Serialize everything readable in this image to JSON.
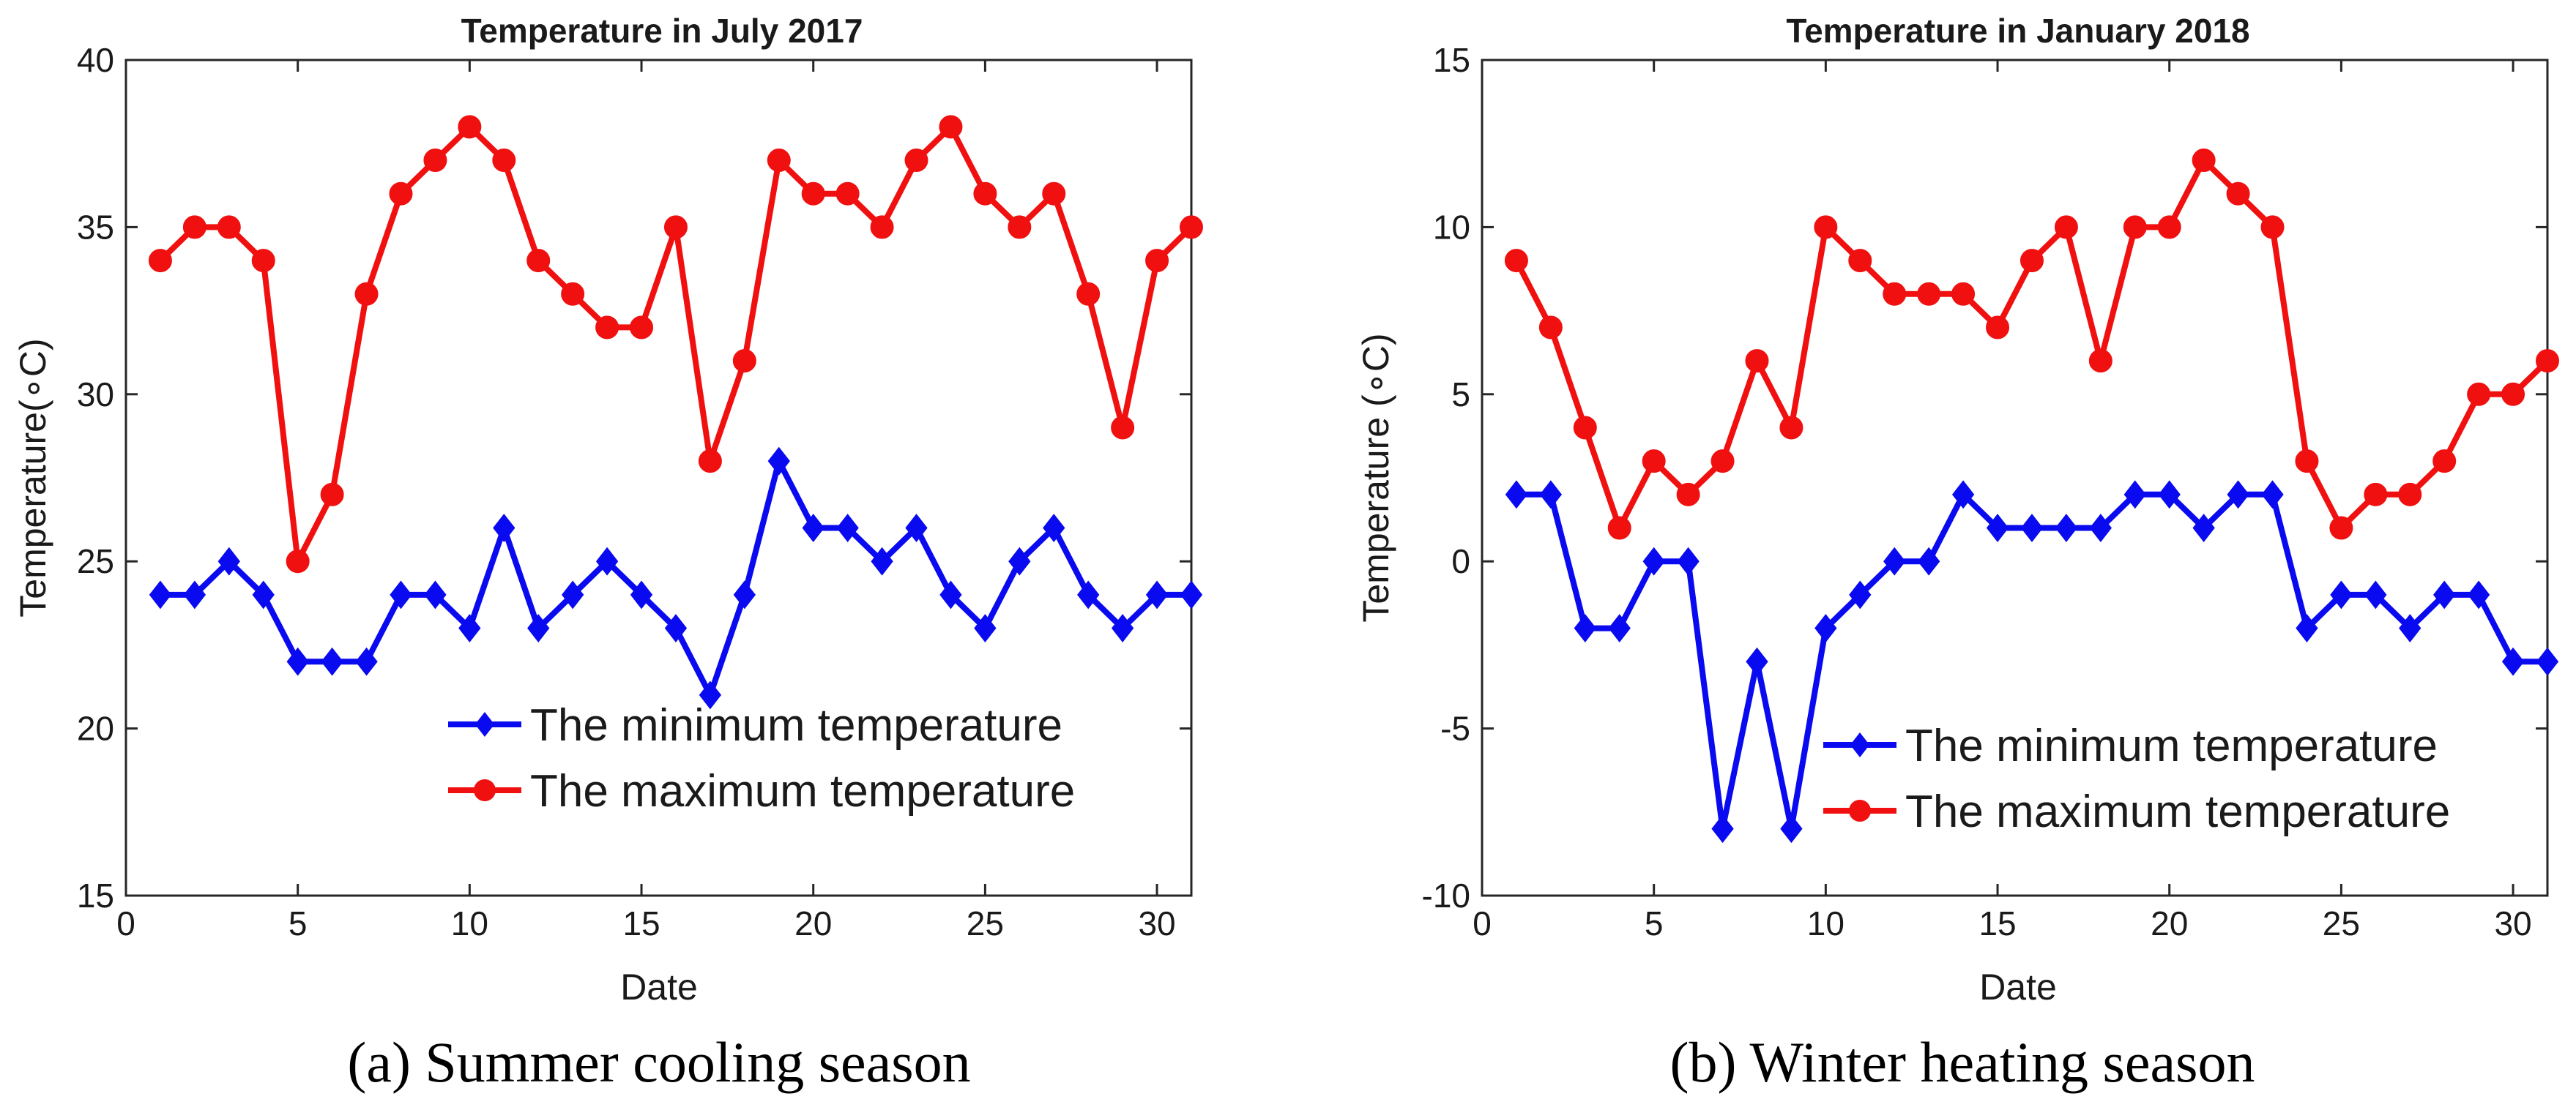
{
  "colors": {
    "min_series": "#0a0af0",
    "max_series": "#f01010",
    "axis": "#262626",
    "background": "#ffffff"
  },
  "chart_data": [
    {
      "type": "line",
      "id": "a",
      "title": "Temperature in July 2017",
      "xlabel": "Date",
      "ylabel": "Temperature(∘C)",
      "xlim": [
        0,
        31
      ],
      "ylim": [
        15,
        40
      ],
      "xticks": [
        0,
        5,
        10,
        15,
        20,
        25,
        30
      ],
      "yticks": [
        15,
        20,
        25,
        30,
        35,
        40
      ],
      "grid": false,
      "legend_position": "bottom-right",
      "caption_label": "(a)",
      "caption_text": "Summer cooling season",
      "x": [
        1,
        2,
        3,
        4,
        5,
        6,
        7,
        8,
        9,
        10,
        11,
        12,
        13,
        14,
        15,
        16,
        17,
        18,
        19,
        20,
        21,
        22,
        23,
        24,
        25,
        26,
        27,
        28,
        29,
        30,
        31
      ],
      "series": [
        {
          "name": "The minimum temperature",
          "marker": "diamond",
          "color_key": "min_series",
          "values": [
            24,
            24,
            25,
            24,
            22,
            22,
            22,
            24,
            24,
            23,
            26,
            23,
            24,
            25,
            24,
            23,
            21,
            24,
            28,
            26,
            26,
            25,
            26,
            24,
            23,
            25,
            26,
            24,
            23,
            24,
            24
          ]
        },
        {
          "name": "The maximum temperature",
          "marker": "circle",
          "color_key": "max_series",
          "values": [
            34,
            35,
            35,
            34,
            25,
            27,
            33,
            36,
            37,
            38,
            37,
            34,
            33,
            32,
            32,
            35,
            28,
            31,
            37,
            36,
            36,
            35,
            37,
            38,
            36,
            35,
            36,
            33,
            29,
            34,
            35
          ]
        }
      ]
    },
    {
      "type": "line",
      "id": "b",
      "title": "Temperature in January 2018",
      "xlabel": "Date",
      "ylabel": "Temperature (∘C)",
      "xlim": [
        0,
        31
      ],
      "ylim": [
        -10,
        15
      ],
      "xticks": [
        0,
        5,
        10,
        15,
        20,
        25,
        30
      ],
      "yticks": [
        -10,
        -5,
        0,
        5,
        10,
        15
      ],
      "grid": false,
      "legend_position": "bottom-right",
      "caption_label": "(b)",
      "caption_text": "Winter heating season",
      "x": [
        1,
        2,
        3,
        4,
        5,
        6,
        7,
        8,
        9,
        10,
        11,
        12,
        13,
        14,
        15,
        16,
        17,
        18,
        19,
        20,
        21,
        22,
        23,
        24,
        25,
        26,
        27,
        28,
        29,
        30,
        31
      ],
      "series": [
        {
          "name": "The minimum temperature",
          "marker": "diamond",
          "color_key": "min_series",
          "values": [
            2,
            2,
            -2,
            -2,
            0,
            0,
            -8,
            -3,
            -8,
            -2,
            -1,
            0,
            0,
            2,
            1,
            1,
            1,
            1,
            2,
            2,
            1,
            2,
            2,
            -2,
            -1,
            -1,
            -2,
            -1,
            -1,
            -3,
            -3
          ]
        },
        {
          "name": "The maximum temperature",
          "marker": "circle",
          "color_key": "max_series",
          "values": [
            9,
            7,
            4,
            1,
            3,
            2,
            3,
            6,
            4,
            10,
            9,
            8,
            8,
            8,
            7,
            9,
            10,
            6,
            10,
            10,
            12,
            11,
            10,
            3,
            1,
            2,
            2,
            3,
            5,
            5,
            6
          ]
        }
      ]
    }
  ]
}
